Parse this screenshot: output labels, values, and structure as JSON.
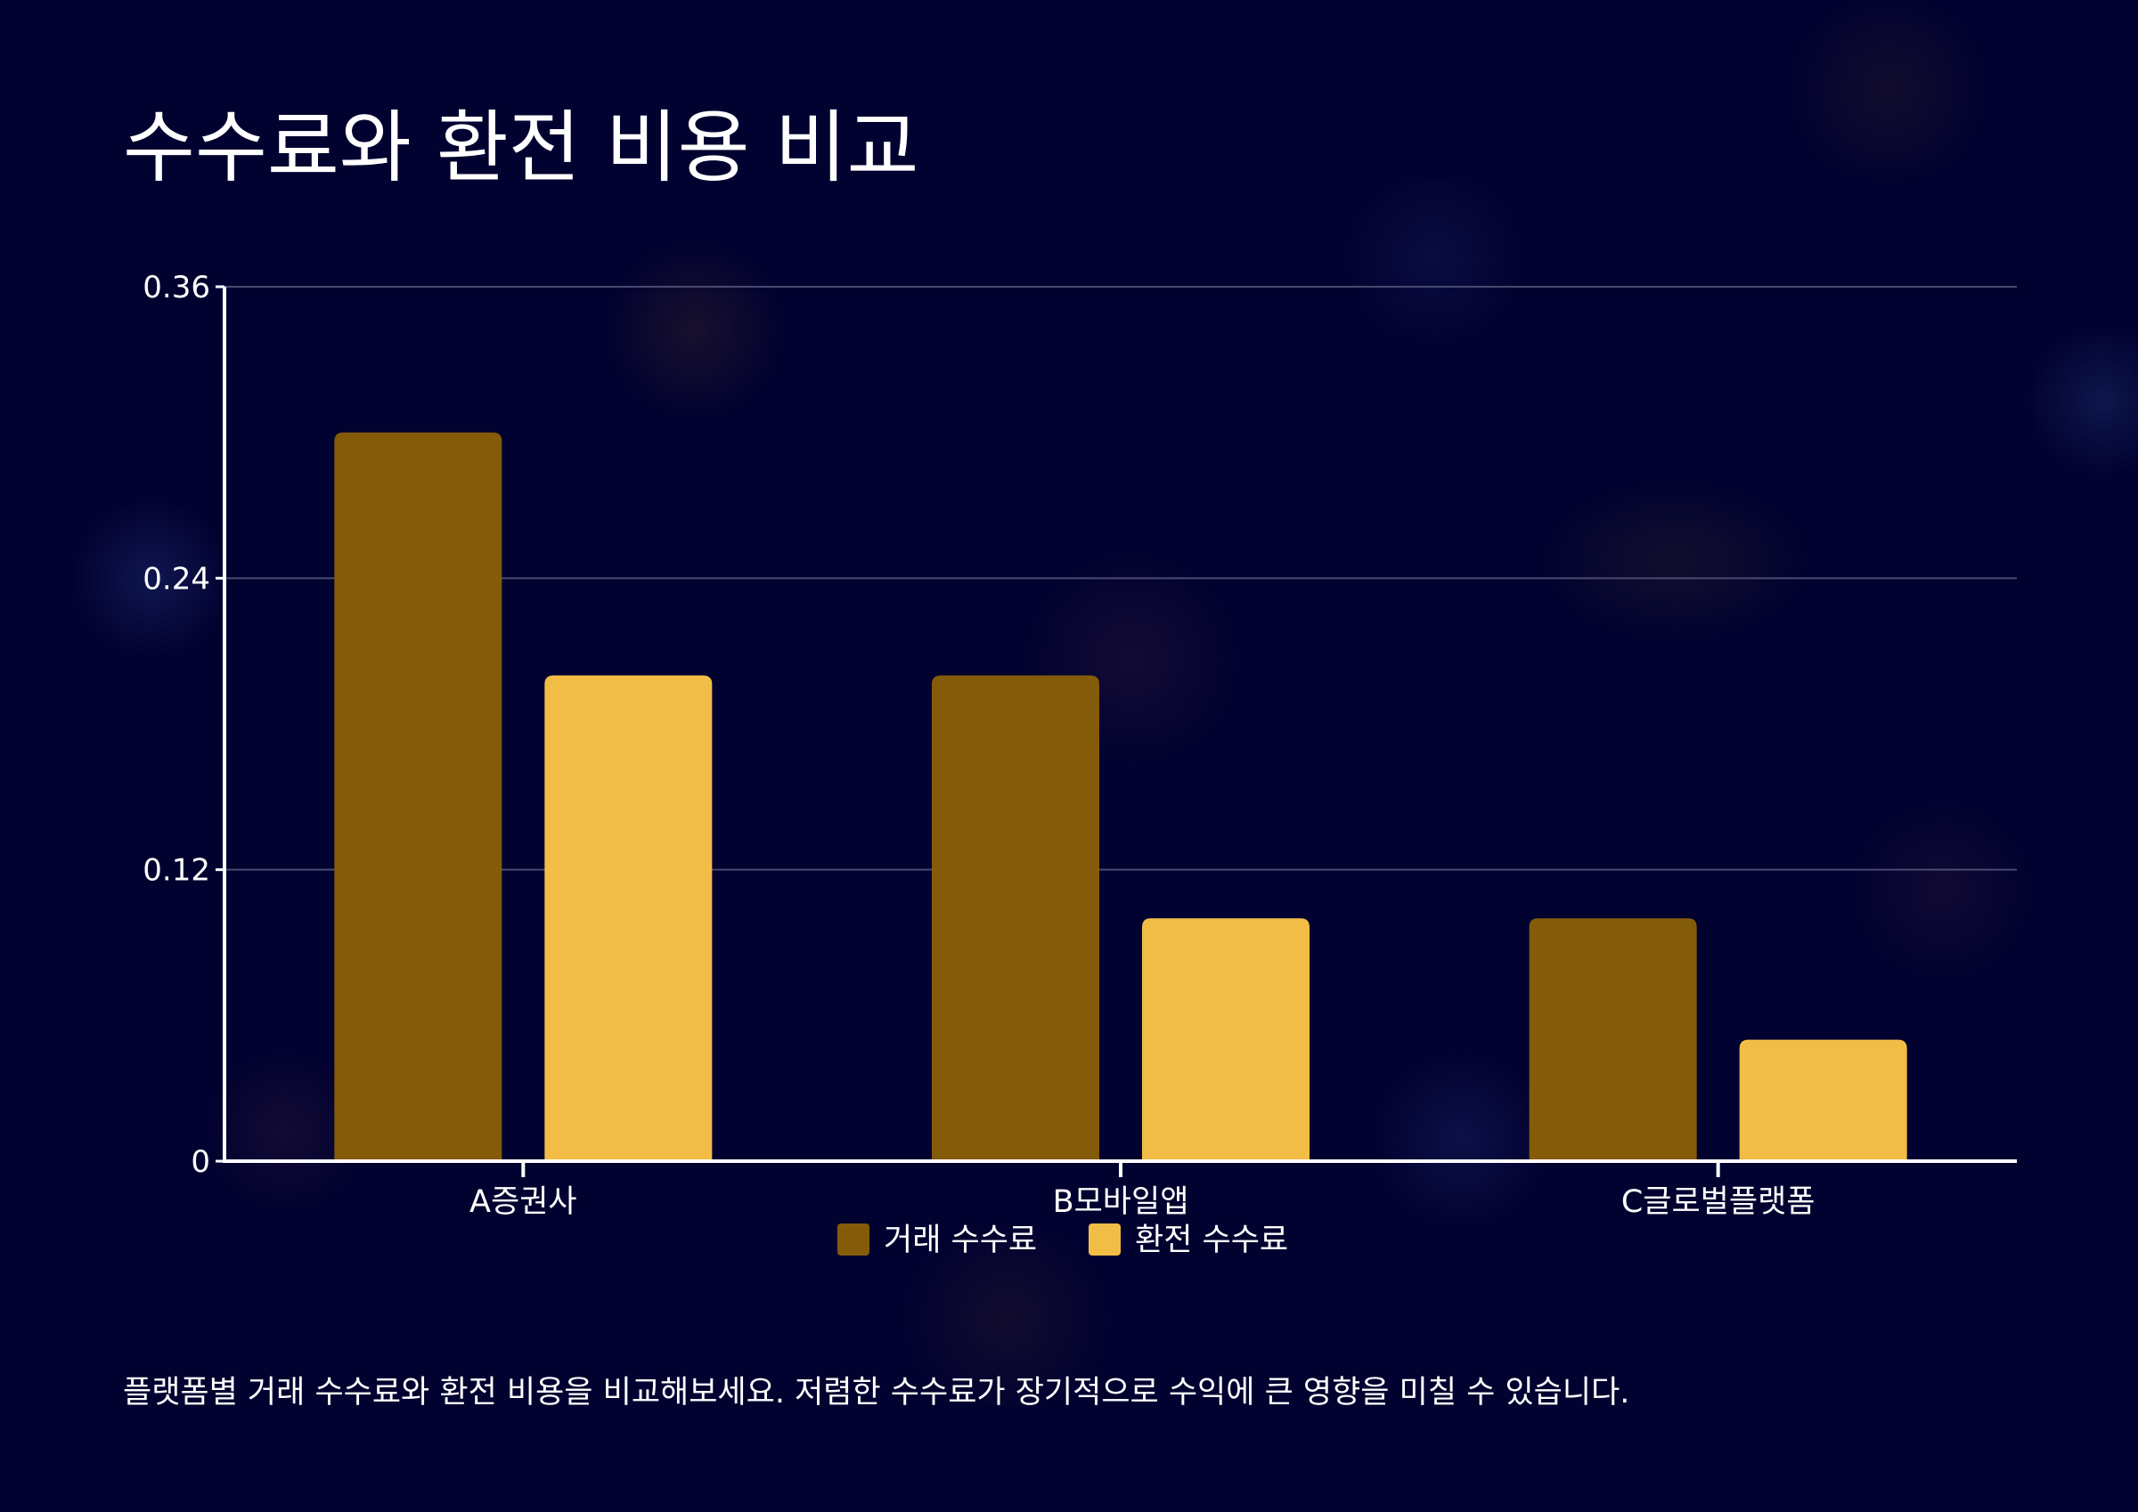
{
  "title": "수수료와 환전 비용 비교",
  "caption": "플랫폼별 거래 수수료와 환전 비용을 비교해보세요. 저렴한 수수료가 장기적으로 수익에 큰 영향을 미칠 수 있습니다.",
  "colors": {
    "background": "#020230",
    "trade_fee": "#845B09",
    "fx_fee": "#F2BD47",
    "axis": "#FFFFFF",
    "grid": "#4A4A70"
  },
  "chart_data": {
    "type": "bar",
    "categories": [
      "A증권사",
      "B모바일앱",
      "C글로벌플랫폼"
    ],
    "series": [
      {
        "name": "거래 수수료",
        "values": [
          0.3,
          0.2,
          0.1
        ]
      },
      {
        "name": "환전 수수료",
        "values": [
          0.2,
          0.1,
          0.05
        ]
      }
    ],
    "yticks": [
      "0",
      "0.12",
      "0.24",
      "0.36"
    ],
    "ylim": [
      0,
      0.36
    ],
    "grid": true,
    "legend": "bottom-center"
  }
}
